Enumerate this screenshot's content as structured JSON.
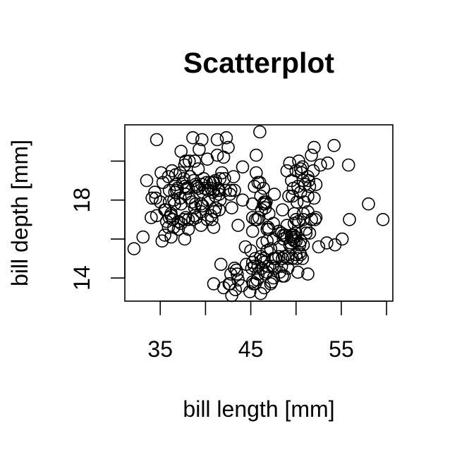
{
  "chart_data": {
    "type": "scatter",
    "title": "Scatterplot",
    "xlabel": "bill length [mm]",
    "ylabel": "bill depth [mm]",
    "xlim": [
      32.1,
      59.6
    ],
    "ylim": [
      13.1,
      21.5
    ],
    "x_ticks": [
      35,
      40,
      45,
      50,
      55,
      60
    ],
    "x_tick_labels": [
      "35",
      "",
      "45",
      "",
      "55",
      ""
    ],
    "y_ticks": [
      14,
      16,
      18,
      20
    ],
    "y_tick_labels": [
      "14",
      "",
      "18",
      ""
    ],
    "grid": false,
    "series": [
      {
        "marker": "open-circle",
        "points": [
          [
            32.1,
            15.5
          ],
          [
            33.1,
            16.1
          ],
          [
            33.5,
            19.0
          ],
          [
            34.0,
            17.1
          ],
          [
            34.1,
            18.1
          ],
          [
            34.4,
            18.4
          ],
          [
            34.5,
            18.1
          ],
          [
            34.6,
            21.1
          ],
          [
            34.6,
            17.2
          ],
          [
            35.0,
            17.9
          ],
          [
            35.1,
            19.4
          ],
          [
            35.2,
            15.9
          ],
          [
            35.3,
            18.9
          ],
          [
            35.5,
            16.2
          ],
          [
            35.5,
            17.5
          ],
          [
            35.6,
            17.5
          ],
          [
            35.7,
            16.9
          ],
          [
            35.9,
            19.2
          ],
          [
            35.9,
            16.6
          ],
          [
            36.0,
            17.9
          ],
          [
            36.0,
            18.5
          ],
          [
            36.0,
            17.1
          ],
          [
            36.2,
            16.1
          ],
          [
            36.2,
            17.3
          ],
          [
            36.2,
            17.2
          ],
          [
            36.3,
            19.5
          ],
          [
            36.4,
            17.0
          ],
          [
            36.5,
            18.0
          ],
          [
            36.5,
            16.6
          ],
          [
            36.6,
            17.8
          ],
          [
            36.6,
            18.4
          ],
          [
            36.7,
            19.3
          ],
          [
            36.7,
            18.8
          ],
          [
            36.8,
            18.5
          ],
          [
            36.9,
            18.6
          ],
          [
            37.0,
            16.9
          ],
          [
            37.0,
            16.5
          ],
          [
            37.2,
            18.1
          ],
          [
            37.2,
            19.4
          ],
          [
            37.3,
            20.5
          ],
          [
            37.3,
            17.8
          ],
          [
            37.3,
            16.8
          ],
          [
            37.5,
            18.9
          ],
          [
            37.6,
            19.1
          ],
          [
            37.6,
            17.0
          ],
          [
            37.7,
            18.7
          ],
          [
            37.7,
            16.0
          ],
          [
            37.7,
            19.8
          ],
          [
            37.8,
            18.3
          ],
          [
            37.8,
            20.0
          ],
          [
            37.8,
            17.1
          ],
          [
            37.9,
            18.6
          ],
          [
            37.9,
            18.6
          ],
          [
            38.1,
            18.6
          ],
          [
            38.1,
            17.0
          ],
          [
            38.1,
            16.5
          ],
          [
            38.2,
            18.1
          ],
          [
            38.2,
            20.0
          ],
          [
            38.3,
            19.2
          ],
          [
            38.5,
            17.9
          ],
          [
            38.6,
            21.2
          ],
          [
            38.6,
            17.0
          ],
          [
            38.7,
            19.0
          ],
          [
            38.8,
            17.2
          ],
          [
            38.8,
            20.0
          ],
          [
            38.8,
            17.6
          ],
          [
            38.9,
            17.8
          ],
          [
            38.9,
            18.8
          ],
          [
            39.0,
            17.1
          ],
          [
            39.0,
            18.7
          ],
          [
            39.1,
            18.7
          ],
          [
            39.2,
            19.6
          ],
          [
            39.2,
            18.6
          ],
          [
            39.3,
            20.6
          ],
          [
            39.5,
            17.4
          ],
          [
            39.5,
            16.7
          ],
          [
            39.5,
            17.8
          ],
          [
            39.6,
            17.7
          ],
          [
            39.6,
            18.8
          ],
          [
            39.6,
            21.1
          ],
          [
            39.7,
            18.4
          ],
          [
            39.7,
            17.7
          ],
          [
            39.8,
            19.1
          ],
          [
            39.9,
            18.6
          ],
          [
            40.1,
            18.9
          ],
          [
            40.2,
            17.0
          ],
          [
            40.2,
            20.1
          ],
          [
            40.3,
            18.0
          ],
          [
            40.3,
            18.5
          ],
          [
            40.5,
            18.9
          ],
          [
            40.6,
            18.6
          ],
          [
            40.6,
            17.2
          ],
          [
            40.7,
            17.0
          ],
          [
            40.8,
            18.4
          ],
          [
            40.8,
            18.9
          ],
          [
            40.9,
            16.6
          ],
          [
            40.9,
            18.9
          ],
          [
            41.0,
            17.4
          ],
          [
            41.1,
            17.6
          ],
          [
            41.1,
            18.2
          ],
          [
            41.1,
            19.0
          ],
          [
            41.3,
            20.3
          ],
          [
            41.3,
            21.1
          ],
          [
            41.4,
            18.6
          ],
          [
            41.4,
            18.5
          ],
          [
            41.5,
            17.5
          ],
          [
            41.5,
            18.3
          ],
          [
            41.6,
            18.0
          ],
          [
            41.6,
            19.1
          ],
          [
            41.8,
            19.4
          ],
          [
            42.0,
            20.2
          ],
          [
            42.1,
            19.1
          ],
          [
            42.2,
            18.5
          ],
          [
            42.3,
            21.2
          ],
          [
            42.5,
            20.7
          ],
          [
            42.7,
            18.3
          ],
          [
            42.8,
            18.5
          ],
          [
            42.9,
            17.6
          ],
          [
            43.1,
            19.2
          ],
          [
            43.2,
            18.5
          ],
          [
            44.1,
            19.7
          ],
          [
            44.1,
            18.0
          ],
          [
            45.2,
            17.8
          ],
          [
            45.6,
            20.3
          ],
          [
            45.8,
            18.9
          ],
          [
            46.0,
            21.5
          ],
          [
            46.1,
            18.2
          ],
          [
            46.4,
            18.6
          ],
          [
            46.5,
            17.9
          ],
          [
            46.6,
            17.8
          ],
          [
            46.7,
            17.9
          ],
          [
            46.8,
            16.5
          ],
          [
            47.0,
            17.3
          ],
          [
            47.5,
            16.8
          ],
          [
            47.6,
            18.3
          ],
          [
            49.0,
            19.5
          ],
          [
            49.2,
            18.2
          ],
          [
            49.3,
            19.9
          ],
          [
            49.5,
            19.0
          ],
          [
            49.6,
            18.2
          ],
          [
            49.7,
            18.6
          ],
          [
            49.8,
            17.3
          ],
          [
            50.0,
            19.5
          ],
          [
            50.1,
            17.9
          ],
          [
            50.2,
            18.7
          ],
          [
            50.3,
            20.0
          ],
          [
            50.5,
            19.6
          ],
          [
            50.5,
            18.4
          ],
          [
            50.6,
            19.4
          ],
          [
            50.7,
            19.7
          ],
          [
            50.8,
            19.0
          ],
          [
            50.9,
            17.9
          ],
          [
            51.0,
            18.8
          ],
          [
            51.3,
            19.2
          ],
          [
            51.3,
            18.2
          ],
          [
            51.4,
            19.0
          ],
          [
            51.5,
            18.7
          ],
          [
            51.7,
            20.3
          ],
          [
            51.9,
            19.5
          ],
          [
            52.0,
            18.1
          ],
          [
            52.0,
            20.7
          ],
          [
            52.2,
            18.8
          ],
          [
            52.7,
            19.8
          ],
          [
            53.5,
            19.9
          ],
          [
            54.2,
            20.8
          ],
          [
            55.8,
            19.8
          ],
          [
            58.0,
            17.8
          ],
          [
            59.6,
            17.0
          ],
          [
            40.9,
            13.7
          ],
          [
            41.7,
            14.7
          ],
          [
            42.0,
            13.5
          ],
          [
            42.6,
            13.7
          ],
          [
            42.7,
            13.7
          ],
          [
            42.8,
            14.2
          ],
          [
            42.9,
            13.1
          ],
          [
            43.2,
            14.5
          ],
          [
            43.3,
            13.4
          ],
          [
            43.4,
            14.4
          ],
          [
            43.5,
            14.2
          ],
          [
            43.6,
            13.9
          ],
          [
            44.0,
            13.6
          ],
          [
            44.4,
            15.6
          ],
          [
            44.5,
            14.7
          ],
          [
            44.9,
            13.3
          ],
          [
            45.0,
            15.4
          ],
          [
            45.1,
            14.5
          ],
          [
            45.2,
            14.8
          ],
          [
            45.2,
            13.8
          ],
          [
            45.3,
            13.7
          ],
          [
            45.4,
            14.6
          ],
          [
            45.5,
            13.7
          ],
          [
            45.5,
            15.0
          ],
          [
            45.7,
            13.9
          ],
          [
            45.8,
            14.2
          ],
          [
            45.8,
            14.6
          ],
          [
            46.1,
            13.2
          ],
          [
            46.1,
            15.1
          ],
          [
            46.2,
            14.5
          ],
          [
            46.2,
            14.9
          ],
          [
            46.3,
            15.8
          ],
          [
            46.4,
            15.0
          ],
          [
            46.5,
            13.5
          ],
          [
            46.5,
            14.8
          ],
          [
            46.6,
            14.2
          ],
          [
            46.8,
            15.4
          ],
          [
            46.8,
            14.3
          ],
          [
            46.9,
            14.6
          ],
          [
            47.2,
            13.7
          ],
          [
            47.2,
            15.5
          ],
          [
            47.3,
            13.8
          ],
          [
            47.4,
            14.6
          ],
          [
            47.5,
            14.0
          ],
          [
            47.5,
            15.0
          ],
          [
            47.6,
            14.5
          ],
          [
            47.7,
            15.0
          ],
          [
            47.8,
            15.0
          ],
          [
            48.1,
            15.1
          ],
          [
            48.2,
            14.3
          ],
          [
            48.2,
            15.6
          ],
          [
            48.4,
            14.6
          ],
          [
            48.4,
            16.3
          ],
          [
            48.5,
            14.1
          ],
          [
            48.5,
            15.0
          ],
          [
            48.6,
            16.0
          ],
          [
            48.7,
            14.1
          ],
          [
            48.7,
            15.1
          ],
          [
            48.8,
            16.2
          ],
          [
            49.0,
            16.1
          ],
          [
            49.1,
            14.5
          ],
          [
            49.1,
            15.0
          ],
          [
            49.2,
            15.2
          ],
          [
            49.3,
            15.7
          ],
          [
            49.4,
            15.8
          ],
          [
            49.5,
            16.2
          ],
          [
            49.5,
            16.1
          ],
          [
            49.6,
            16.0
          ],
          [
            49.6,
            15.0
          ],
          [
            49.8,
            15.9
          ],
          [
            49.8,
            16.8
          ],
          [
            49.9,
            16.1
          ],
          [
            50.0,
            15.2
          ],
          [
            50.0,
            15.9
          ],
          [
            50.0,
            16.3
          ],
          [
            50.1,
            15.0
          ],
          [
            50.2,
            14.3
          ],
          [
            50.4,
            15.3
          ],
          [
            50.4,
            15.7
          ],
          [
            50.5,
            15.2
          ],
          [
            50.5,
            15.9
          ],
          [
            50.7,
            15.0
          ],
          [
            50.8,
            15.7
          ],
          [
            50.8,
            17.3
          ],
          [
            51.1,
            16.5
          ],
          [
            51.1,
            16.3
          ],
          [
            51.3,
            14.2
          ],
          [
            51.5,
            16.3
          ],
          [
            52.1,
            17.0
          ],
          [
            52.2,
            17.1
          ],
          [
            52.5,
            15.6
          ],
          [
            53.4,
            15.8
          ],
          [
            54.3,
            15.7
          ],
          [
            55.1,
            16.0
          ],
          [
            55.9,
            17.0
          ],
          [
            41.5,
            18.5
          ],
          [
            43.6,
            16.7
          ],
          [
            45.2,
            16.4
          ],
          [
            45.2,
            17.1
          ],
          [
            45.4,
            18.7
          ],
          [
            45.5,
            17.0
          ],
          [
            45.6,
            19.4
          ],
          [
            45.7,
            17.0
          ],
          [
            45.9,
            17.1
          ],
          [
            46.0,
            18.9
          ],
          [
            46.2,
            17.5
          ],
          [
            46.4,
            17.8
          ],
          [
            46.6,
            17.6
          ],
          [
            46.8,
            15.9
          ],
          [
            46.9,
            16.6
          ],
          [
            47.0,
            16.5
          ],
          [
            47.5,
            16.0
          ],
          [
            48.1,
            16.4
          ],
          [
            48.5,
            17.5
          ],
          [
            48.6,
            16.2
          ],
          [
            49.0,
            16.7
          ],
          [
            49.7,
            16.2
          ],
          [
            50.0,
            17.0
          ],
          [
            50.3,
            16.9
          ],
          [
            50.8,
            17.0
          ],
          [
            51.3,
            17.4
          ],
          [
            51.7,
            17.0
          ]
        ]
      }
    ]
  }
}
